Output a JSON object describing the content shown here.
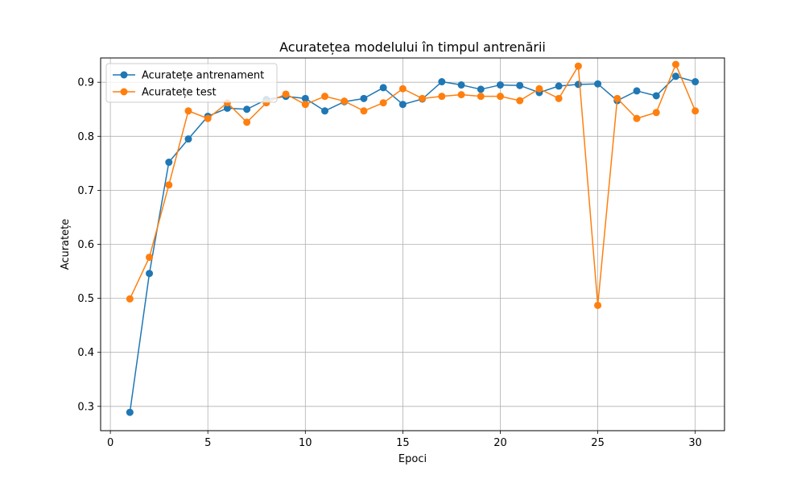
{
  "chart_data": {
    "type": "line",
    "title": "Acuratețea modelului în timpul antrenării",
    "xlabel": "Epoci",
    "ylabel": "Acuratețe",
    "xlim": [
      -0.5,
      31.5
    ],
    "ylim": [
      0.255,
      0.945
    ],
    "xticks": [
      0,
      5,
      10,
      15,
      20,
      25,
      30
    ],
    "yticks": [
      0.3,
      0.4,
      0.5,
      0.6,
      0.7,
      0.8,
      0.9
    ],
    "xtick_labels": [
      "0",
      "5",
      "10",
      "15",
      "20",
      "25",
      "30"
    ],
    "ytick_labels": [
      "0.3",
      "0.4",
      "0.5",
      "0.6",
      "0.7",
      "0.8",
      "0.9"
    ],
    "grid": true,
    "legend_position": "top-left",
    "x": [
      1,
      2,
      3,
      4,
      5,
      6,
      7,
      8,
      9,
      10,
      11,
      12,
      13,
      14,
      15,
      16,
      17,
      18,
      19,
      20,
      21,
      22,
      23,
      24,
      25,
      26,
      27,
      28,
      29,
      30
    ],
    "series": [
      {
        "name": "Acuratețe antrenament",
        "color": "#1f77b4",
        "values": [
          0.289,
          0.546,
          0.752,
          0.795,
          0.837,
          0.852,
          0.85,
          0.868,
          0.874,
          0.87,
          0.847,
          0.864,
          0.87,
          0.89,
          0.859,
          0.869,
          0.901,
          0.895,
          0.887,
          0.895,
          0.894,
          0.881,
          0.893,
          0.896,
          0.897,
          0.866,
          0.884,
          0.875,
          0.911,
          0.901
        ]
      },
      {
        "name": "Acuratețe test",
        "color": "#ff7f0e",
        "values": [
          0.499,
          0.576,
          0.71,
          0.847,
          0.833,
          0.862,
          0.826,
          0.862,
          0.878,
          0.859,
          0.874,
          0.865,
          0.847,
          0.862,
          0.888,
          0.87,
          0.874,
          0.877,
          0.874,
          0.874,
          0.866,
          0.888,
          0.87,
          0.93,
          0.487,
          0.87,
          0.833,
          0.844,
          0.933,
          0.847
        ]
      }
    ]
  }
}
